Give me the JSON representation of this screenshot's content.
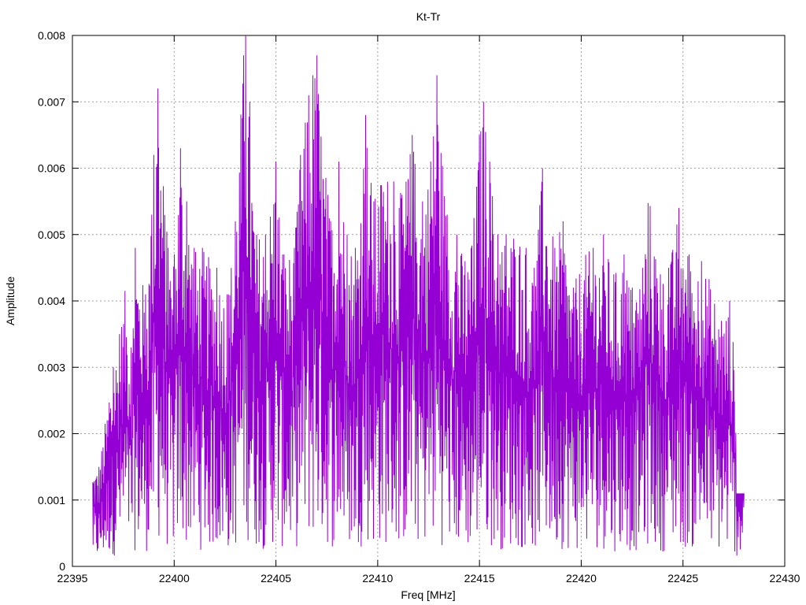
{
  "chart_data": {
    "type": "line",
    "title": "Kt-Tr",
    "xlabel": "Freq [MHz]",
    "ylabel": "Amplitude",
    "xlim": [
      22395,
      22430
    ],
    "ylim": [
      0,
      0.008
    ],
    "xticks": [
      22395,
      22400,
      22405,
      22410,
      22415,
      22420,
      22425,
      22430
    ],
    "xtick_labels": [
      "22395",
      "22400",
      "22405",
      "22410",
      "22415",
      "22420",
      "22425",
      "22430"
    ],
    "yticks": [
      0,
      0.001,
      0.002,
      0.003,
      0.004,
      0.005,
      0.006,
      0.007,
      0.008
    ],
    "ytick_labels": [
      "0",
      "0.001",
      "0.002",
      "0.003",
      "0.004",
      "0.005",
      "0.006",
      "0.007",
      "0.008"
    ],
    "grid": true,
    "legend": "none",
    "series_color": "#9400d3",
    "series": [
      {
        "x_start": 22396.0,
        "x_end": 22428.0,
        "peaks": [
          [
            22396.3,
            0.0015
          ],
          [
            22396.8,
            0.0026
          ],
          [
            22397.0,
            0.003
          ],
          [
            22397.3,
            0.0035
          ],
          [
            22397.6,
            0.0042
          ],
          [
            22397.9,
            0.0033
          ],
          [
            22398.1,
            0.0048
          ],
          [
            22398.6,
            0.0041
          ],
          [
            22398.9,
            0.0053
          ],
          [
            22399.0,
            0.0062
          ],
          [
            22399.2,
            0.0072
          ],
          [
            22399.7,
            0.0048
          ],
          [
            22400.0,
            0.0047
          ],
          [
            22400.3,
            0.0063
          ],
          [
            22400.6,
            0.0055
          ],
          [
            22401.0,
            0.0048
          ],
          [
            22401.4,
            0.0048
          ],
          [
            22402.1,
            0.0045
          ],
          [
            22402.6,
            0.0041
          ],
          [
            22403.0,
            0.0052
          ],
          [
            22403.4,
            0.0077
          ],
          [
            22403.5,
            0.008
          ],
          [
            22403.7,
            0.007
          ],
          [
            22404.0,
            0.0051
          ],
          [
            22404.5,
            0.005
          ],
          [
            22405.0,
            0.0061
          ],
          [
            22405.4,
            0.0047
          ],
          [
            22405.9,
            0.0048
          ],
          [
            22406.2,
            0.0062
          ],
          [
            22406.6,
            0.0071
          ],
          [
            22406.8,
            0.0074
          ],
          [
            22407.0,
            0.0077
          ],
          [
            22407.3,
            0.0065
          ],
          [
            22407.7,
            0.0052
          ],
          [
            22408.1,
            0.0061
          ],
          [
            22408.5,
            0.005
          ],
          [
            22408.9,
            0.0048
          ],
          [
            22409.4,
            0.0068
          ],
          [
            22409.8,
            0.0055
          ],
          [
            22410.3,
            0.0061
          ],
          [
            22410.8,
            0.0058
          ],
          [
            22411.2,
            0.0056
          ],
          [
            22411.7,
            0.0065
          ],
          [
            22412.2,
            0.0055
          ],
          [
            22412.6,
            0.0061
          ],
          [
            22412.9,
            0.0074
          ],
          [
            22413.4,
            0.0053
          ],
          [
            22413.9,
            0.005
          ],
          [
            22414.3,
            0.0046
          ],
          [
            22414.6,
            0.0048
          ],
          [
            22415.0,
            0.0065
          ],
          [
            22415.2,
            0.007
          ],
          [
            22415.5,
            0.0061
          ],
          [
            22415.9,
            0.005
          ],
          [
            22416.3,
            0.005
          ],
          [
            22416.8,
            0.0052
          ],
          [
            22417.3,
            0.0048
          ],
          [
            22417.7,
            0.0045
          ],
          [
            22418.1,
            0.006
          ],
          [
            22418.7,
            0.0048
          ],
          [
            22419.1,
            0.0052
          ],
          [
            22419.6,
            0.0042
          ],
          [
            22420.1,
            0.0047
          ],
          [
            22420.6,
            0.0048
          ],
          [
            22421.1,
            0.005
          ],
          [
            22421.6,
            0.0044
          ],
          [
            22422.1,
            0.0047
          ],
          [
            22422.5,
            0.0042
          ],
          [
            22423.0,
            0.0045
          ],
          [
            22423.3,
            0.0057
          ],
          [
            22423.9,
            0.0044
          ],
          [
            22424.3,
            0.0045
          ],
          [
            22424.8,
            0.0054
          ],
          [
            22425.3,
            0.0047
          ],
          [
            22425.9,
            0.0046
          ],
          [
            22426.4,
            0.0043
          ],
          [
            22426.9,
            0.0037
          ],
          [
            22427.3,
            0.004
          ],
          [
            22427.8,
            0.0022
          ]
        ]
      }
    ]
  }
}
